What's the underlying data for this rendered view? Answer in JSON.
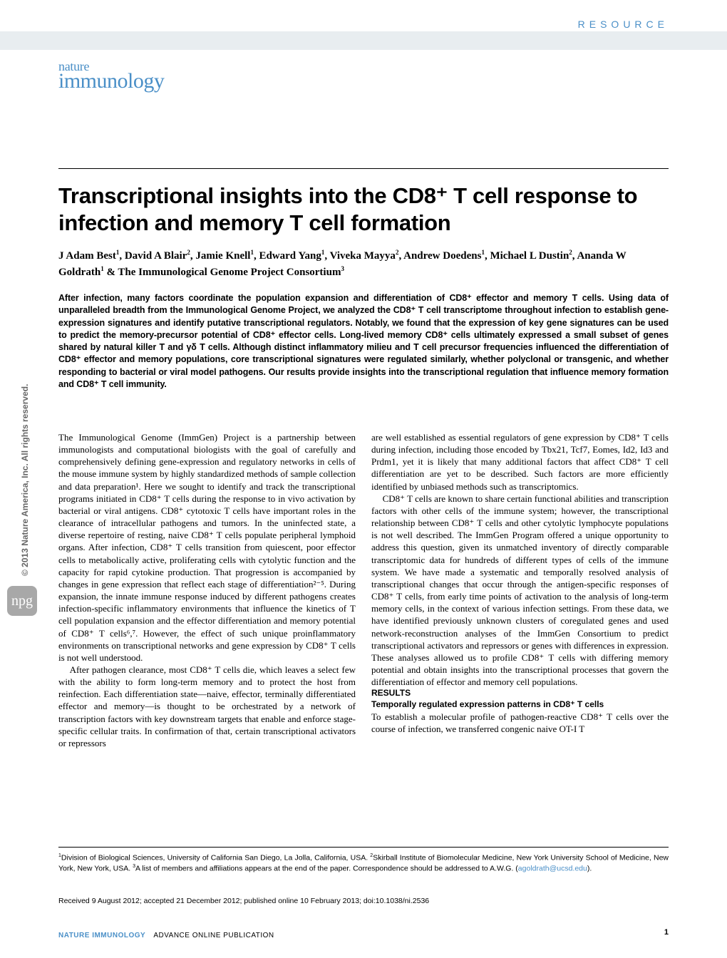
{
  "header": {
    "resource_label": "RESOURCE",
    "brand_line1": "nature",
    "brand_line2": "immunology"
  },
  "title": "Transcriptional insights into the CD8⁺ T cell response to infection and memory T cell formation",
  "authors_html": "J Adam Best<sup>1</sup>, David A Blair<sup>2</sup>, Jamie Knell<sup>1</sup>, Edward Yang<sup>1</sup>, Viveka Mayya<sup>2</sup>, Andrew Doedens<sup>1</sup>, Michael L Dustin<sup>2</sup>, Ananda W Goldrath<sup>1</sup> & The Immunological Genome Project Consortium<sup>3</sup>",
  "abstract": "After infection, many factors coordinate the population expansion and differentiation of CD8⁺ effector and memory T cells. Using data of unparalleled breadth from the Immunological Genome Project, we analyzed the CD8⁺ T cell transcriptome throughout infection to establish gene-expression signatures and identify putative transcriptional regulators. Notably, we found that the expression of key gene signatures can be used to predict the memory-precursor potential of CD8⁺ effector cells. Long-lived memory CD8⁺ cells ultimately expressed a small subset of genes shared by natural killer T and γδ T cells. Although distinct inflammatory milieu and T cell precursor frequencies influenced the differentiation of CD8⁺ effector and memory populations, core transcriptional signatures were regulated similarly, whether polyclonal or transgenic, and whether responding to bacterial or viral model pathogens. Our results provide insights into the transcriptional regulation that influence memory formation and CD8⁺ T cell immunity.",
  "body": {
    "p1": "The Immunological Genome (ImmGen) Project is a partnership between immunologists and computational biologists with the goal of carefully and comprehensively defining gene-expression and regulatory networks in cells of the mouse immune system by highly standardized methods of sample collection and data preparation¹. Here we sought to identify and track the transcriptional programs initiated in CD8⁺ T cells during the response to in vivo activation by bacterial or viral antigens. CD8⁺ cytotoxic T cells have important roles in the clearance of intracellular pathogens and tumors. In the uninfected state, a diverse repertoire of resting, naive CD8⁺ T cells populate peripheral lymphoid organs. After infection, CD8⁺ T cells transition from quiescent, poor effector cells to metabolically active, proliferating cells with cytolytic function and the capacity for rapid cytokine production. That progression is accompanied by changes in gene expression that reflect each stage of differentiation²⁻⁵. During expansion, the innate immune response induced by different pathogens creates infection-specific inflammatory environments that influence the kinetics of T cell population expansion and the effector differentiation and memory potential of CD8⁺ T cells⁶,⁷. However, the effect of such unique proinflammatory environments on transcriptional networks and gene expression by CD8⁺ T cells is not well understood.",
    "p2": "After pathogen clearance, most CD8⁺ T cells die, which leaves a select few with the ability to form long-term memory and to protect the host from reinfection. Each differentiation state—naive, effector, terminally differentiated effector and memory—is thought to be orchestrated by a network of transcription factors with key downstream targets that enable and enforce stage-specific cellular traits. In confirmation of that, certain transcriptional activators or repressors",
    "p3": "are well established as essential regulators of gene expression by CD8⁺ T cells during infection, including those encoded by Tbx21, Tcf7, Eomes, Id2, Id3 and Prdm1, yet it is likely that many additional factors that affect CD8⁺ T cell differentiation are yet to be described. Such factors are more efficiently identified by unbiased methods such as transcriptomics.",
    "p4": "CD8⁺ T cells are known to share certain functional abilities and transcription factors with other cells of the immune system; however, the transcriptional relationship between CD8⁺ T cells and other cytolytic lymphocyte populations is not well described. The ImmGen Program offered a unique opportunity to address this question, given its unmatched inventory of directly comparable transcriptomic data for hundreds of different types of cells of the immune system. We have made a systematic and temporally resolved analysis of transcriptional changes that occur through the antigen-specific responses of CD8⁺ T cells, from early time points of activation to the analysis of long-term memory cells, in the context of various infection settings. From these data, we have identified previously unknown clusters of coregulated genes and used network-reconstruction analyses of the ImmGen Consortium to predict transcriptional activators and repressors or genes with differences in expression. These analyses allowed us to profile CD8⁺ T cells with differing memory potential and obtain insights into the transcriptional processes that govern the differentiation of effector and memory cell populations.",
    "results_head": "RESULTS",
    "results_sub": "Temporally regulated expression patterns in CD8⁺ T cells",
    "p5": "To establish a molecular profile of pathogen-reactive CD8⁺ T cells over the course of infection, we transferred congenic naive OT-I T"
  },
  "affiliations_html": "<sup>1</sup>Division of Biological Sciences, University of California San Diego, La Jolla, California, USA. <sup>2</sup>Skirball Institute of Biomolecular Medicine, New York University School of Medicine, New York, New York, USA. <sup>3</sup>A list of members and affiliations appears at the end of the paper. Correspondence should be addressed to A.W.G. (<a href=\"#\">agoldrath@ucsd.edu</a>).",
  "received": "Received 9 August 2012; accepted 21 December 2012; published online 10 February 2013; doi:10.1038/ni.2536",
  "footer": {
    "journal": "NATURE IMMUNOLOGY",
    "aop": "ADVANCE ONLINE PUBLICATION",
    "page_num": "1"
  },
  "copyright_side": "© 2013 Nature America, Inc.  All rights reserved.",
  "colors": {
    "accent": "#4a8fc7",
    "bar_bg": "#e8edf0",
    "side_gray": "#676767",
    "npg_gray": "#a8a8a8"
  }
}
